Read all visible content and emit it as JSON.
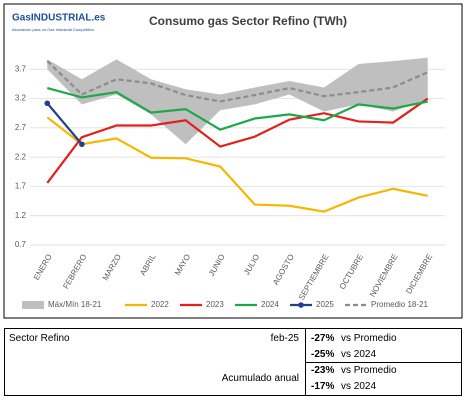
{
  "logo": {
    "name": "GasINDUSTRIAL.es",
    "tagline": "Asociación para un Gas Industrial Competitivo"
  },
  "chart_data": {
    "type": "line",
    "title": "Consumo gas Sector Refino (TWh)",
    "categories": [
      "ENERO",
      "FEBRERO",
      "MARZO",
      "ABRIL",
      "MAYO",
      "JUNIO",
      "JULIO",
      "AGOSTO",
      "SEPTIEMBRE",
      "OCTUBRE",
      "NOVIEMBRE",
      "DICIEMBRE"
    ],
    "ylim": [
      0.7,
      4.2
    ],
    "yticks": [
      0.7,
      1.2,
      1.7,
      2.2,
      2.7,
      3.2,
      3.7
    ],
    "grid": true,
    "band": {
      "name": "Máx/Mín 18-21",
      "color": "#bfbfbf",
      "max": [
        3.87,
        3.53,
        3.87,
        3.53,
        3.36,
        3.27,
        3.39,
        3.5,
        3.39,
        3.79,
        3.84,
        3.9
      ],
      "min": [
        3.7,
        3.1,
        3.27,
        2.93,
        2.42,
        3.0,
        3.1,
        3.27,
        2.98,
        3.1,
        2.98,
        3.19
      ]
    },
    "series": [
      {
        "name": "2022",
        "color": "#f5b800",
        "values": [
          2.88,
          2.42,
          2.52,
          2.19,
          2.18,
          2.04,
          1.39,
          1.37,
          1.27,
          1.51,
          1.66,
          1.54
        ]
      },
      {
        "name": "2023",
        "color": "#e3201b",
        "values": [
          1.76,
          2.54,
          2.74,
          2.74,
          2.83,
          2.38,
          2.55,
          2.84,
          2.95,
          2.81,
          2.79,
          3.2
        ]
      },
      {
        "name": "2024",
        "color": "#1fa84a",
        "values": [
          3.38,
          3.22,
          3.31,
          2.96,
          3.02,
          2.67,
          2.86,
          2.93,
          2.83,
          3.1,
          3.03,
          3.15
        ]
      },
      {
        "name": "2025",
        "color": "#243f8c",
        "markers": true,
        "values": [
          3.12,
          2.42,
          null,
          null,
          null,
          null,
          null,
          null,
          null,
          null,
          null,
          null
        ]
      },
      {
        "name": "Promedio 18-21",
        "color": "#8c8c8c",
        "dashed": true,
        "values": [
          3.84,
          3.27,
          3.53,
          3.46,
          3.26,
          3.15,
          3.26,
          3.38,
          3.24,
          3.31,
          3.39,
          3.65
        ]
      }
    ]
  },
  "summary": {
    "label": "Sector Refino",
    "groups": [
      {
        "period": "feb-25",
        "items": [
          {
            "value": "-27%",
            "ref": "vs Promedio"
          },
          {
            "value": "-25%",
            "ref": "vs 2024"
          }
        ]
      },
      {
        "period": "Acumulado anual",
        "items": [
          {
            "value": "-23%",
            "ref": "vs Promedio"
          },
          {
            "value": "-17%",
            "ref": "vs 2024"
          }
        ]
      }
    ]
  }
}
